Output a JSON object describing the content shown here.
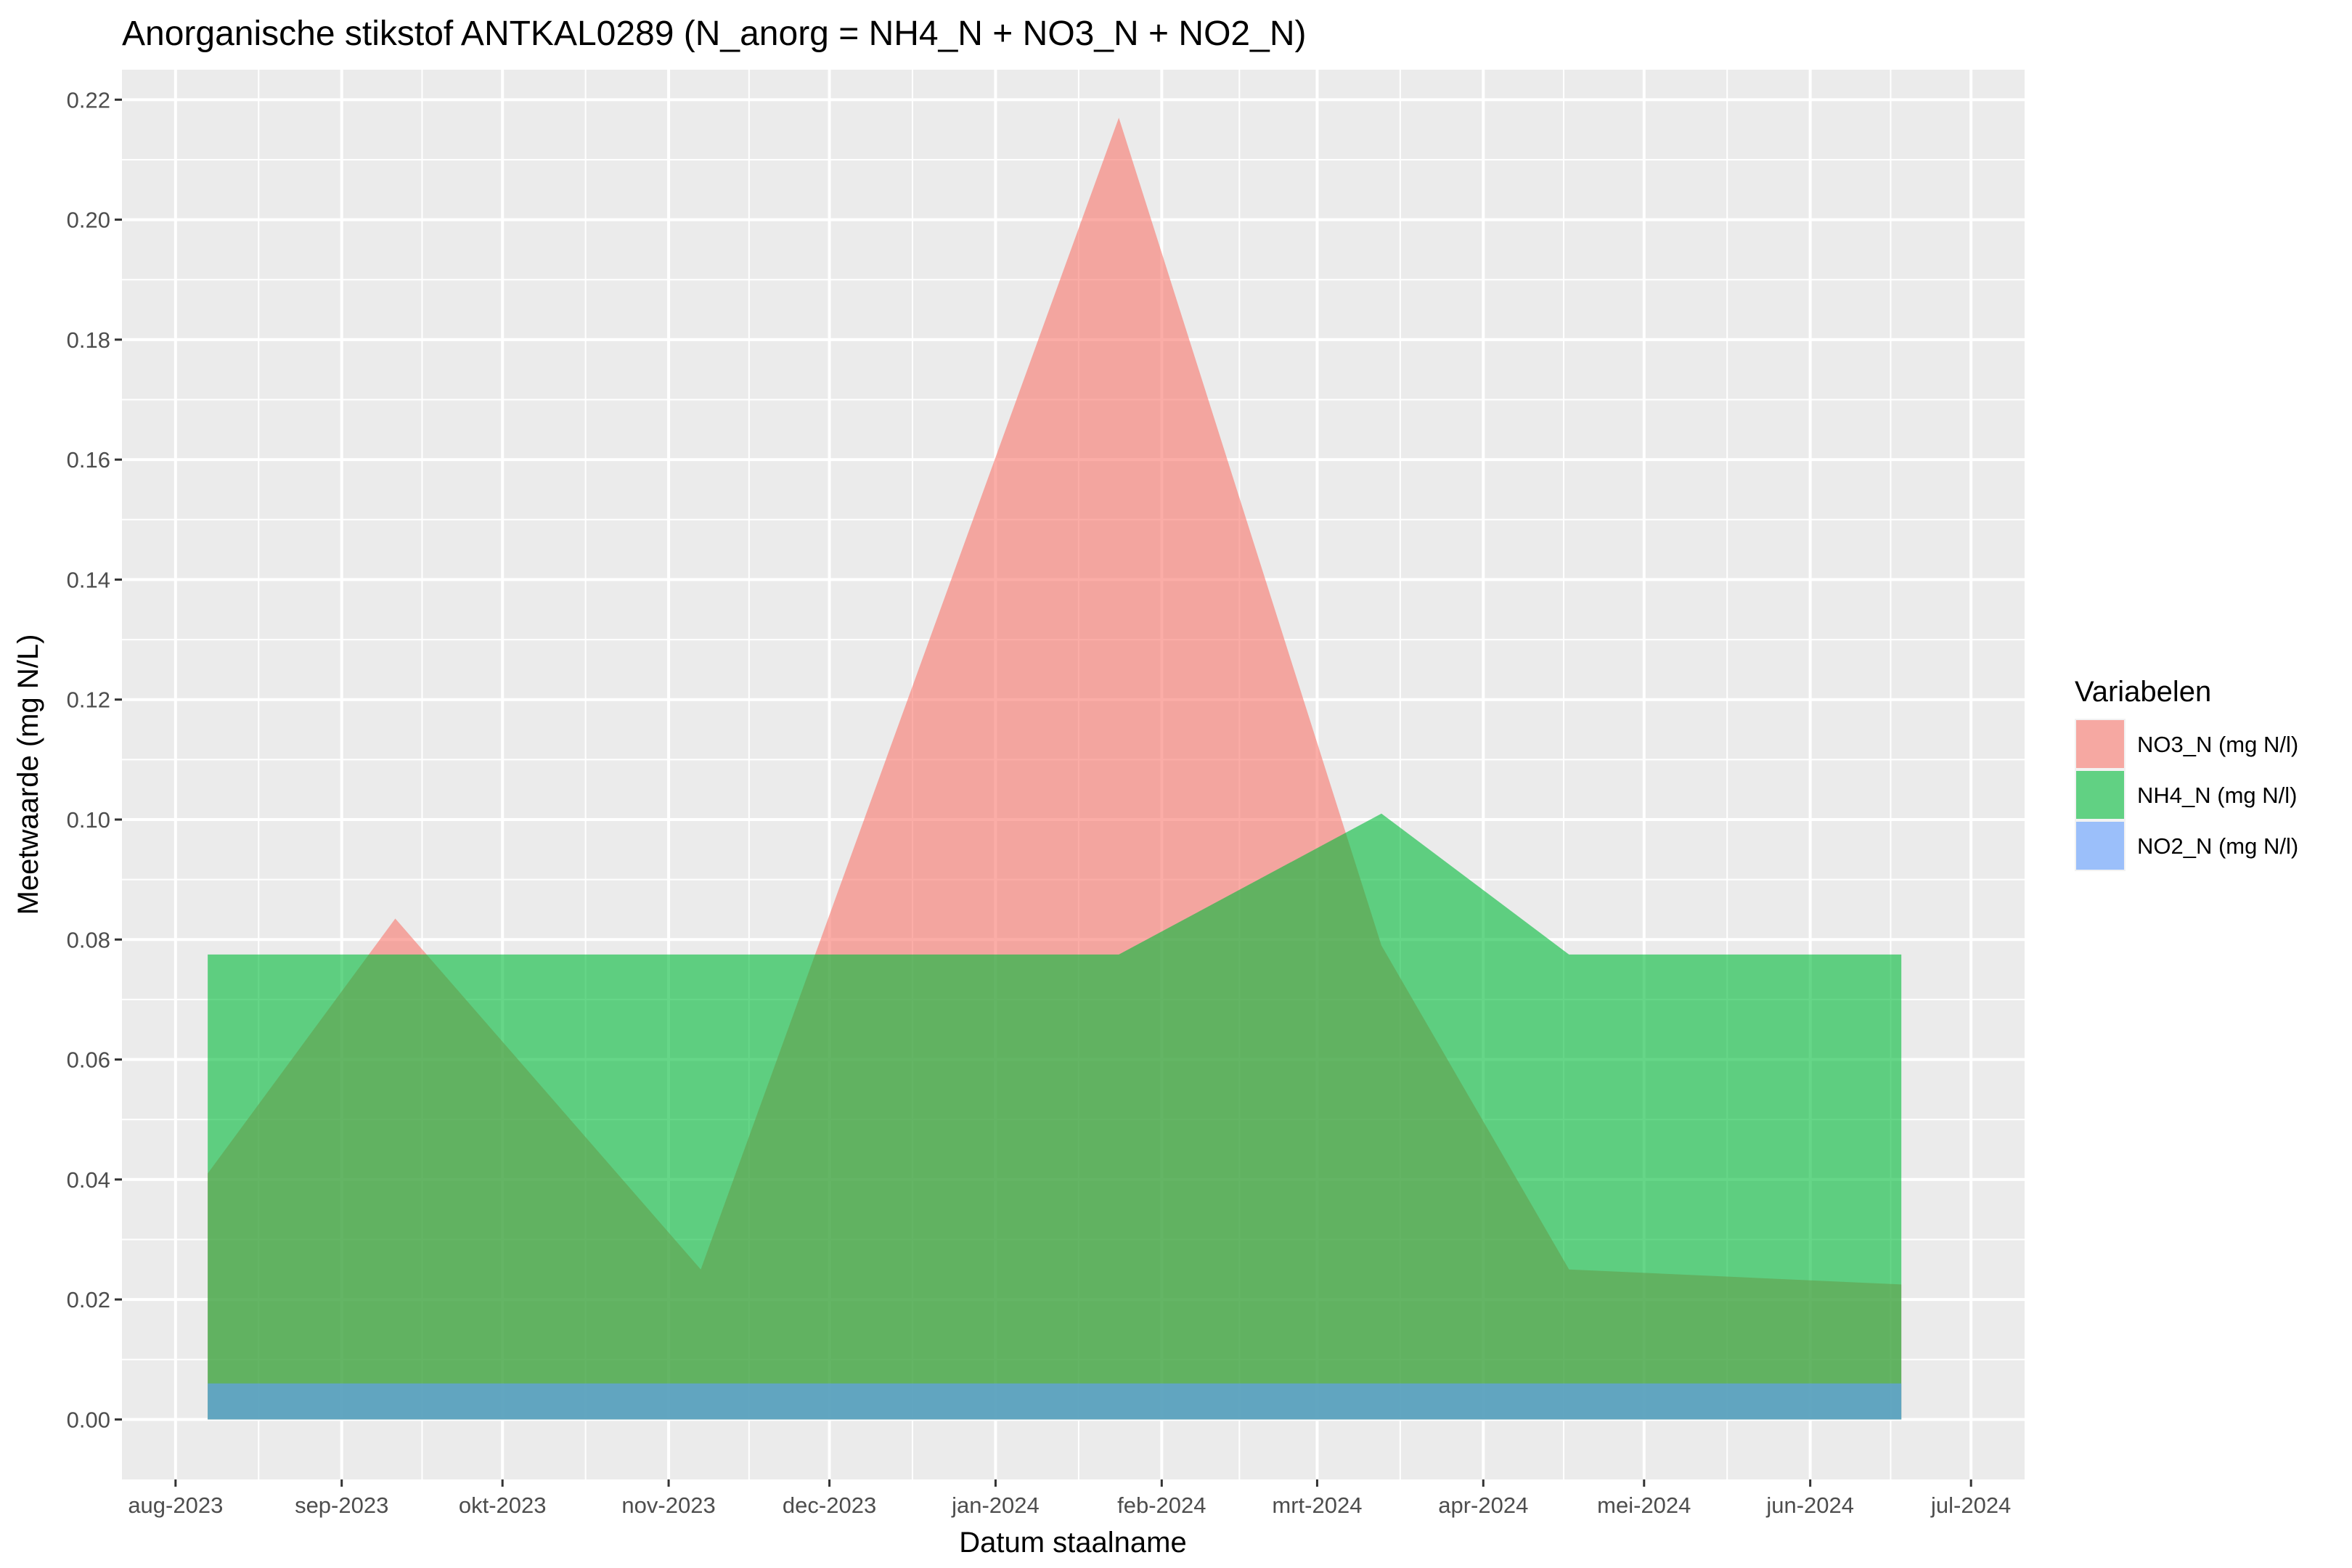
{
  "chart_data": {
    "type": "area",
    "title": "Anorganische stikstof ANTKAL0289 (N_anorg = NH4_N + NO3_N + NO2_N)",
    "xlabel": "Datum staalname",
    "ylabel": "Meetwaarde (mg N/L)",
    "ylim": [
      -0.01,
      0.225
    ],
    "xlim": [
      "2023-07-22",
      "2024-07-11"
    ],
    "y_ticks": [
      "0.00",
      "0.02",
      "0.04",
      "0.06",
      "0.08",
      "0.10",
      "0.12",
      "0.14",
      "0.16",
      "0.18",
      "0.20",
      "0.22"
    ],
    "x_ticks": [
      {
        "date": "2023-08-01",
        "label": "aug-2023"
      },
      {
        "date": "2023-09-01",
        "label": "sep-2023"
      },
      {
        "date": "2023-10-01",
        "label": "okt-2023"
      },
      {
        "date": "2023-11-01",
        "label": "nov-2023"
      },
      {
        "date": "2023-12-01",
        "label": "dec-2023"
      },
      {
        "date": "2024-01-01",
        "label": "jan-2024"
      },
      {
        "date": "2024-02-01",
        "label": "feb-2024"
      },
      {
        "date": "2024-03-01",
        "label": "mrt-2024"
      },
      {
        "date": "2024-04-01",
        "label": "apr-2024"
      },
      {
        "date": "2024-05-01",
        "label": "mei-2024"
      },
      {
        "date": "2024-06-01",
        "label": "jun-2024"
      },
      {
        "date": "2024-07-01",
        "label": "jul-2024"
      }
    ],
    "grid": true,
    "legend": {
      "title": "Variabelen",
      "position": "right"
    },
    "series": [
      {
        "name": "NO3_N (mg N/l)",
        "color": "#F8766D",
        "points": [
          {
            "x": "2023-08-07",
            "y": 0.041
          },
          {
            "x": "2023-09-11",
            "y": 0.0835
          },
          {
            "x": "2023-11-07",
            "y": 0.025
          },
          {
            "x": "2024-01-24",
            "y": 0.217
          },
          {
            "x": "2024-03-13",
            "y": 0.079
          },
          {
            "x": "2024-04-17",
            "y": 0.025
          },
          {
            "x": "2024-06-18",
            "y": 0.0225
          }
        ]
      },
      {
        "name": "NH4_N (mg N/l)",
        "color": "#00BA38",
        "points": [
          {
            "x": "2023-08-07",
            "y": 0.0775
          },
          {
            "x": "2023-09-11",
            "y": 0.0775
          },
          {
            "x": "2023-11-07",
            "y": 0.0775
          },
          {
            "x": "2024-01-24",
            "y": 0.0775
          },
          {
            "x": "2024-03-13",
            "y": 0.101
          },
          {
            "x": "2024-04-17",
            "y": 0.0775
          },
          {
            "x": "2024-06-18",
            "y": 0.0775
          }
        ]
      },
      {
        "name": "NO2_N (mg N/l)",
        "color": "#619CFF",
        "points": [
          {
            "x": "2023-08-07",
            "y": 0.006
          },
          {
            "x": "2023-09-11",
            "y": 0.006
          },
          {
            "x": "2023-11-07",
            "y": 0.006
          },
          {
            "x": "2024-01-24",
            "y": 0.006
          },
          {
            "x": "2024-03-13",
            "y": 0.006
          },
          {
            "x": "2024-04-17",
            "y": 0.006
          },
          {
            "x": "2024-06-18",
            "y": 0.006
          }
        ]
      }
    ]
  },
  "colors": {
    "panel_background": "#EBEBEB",
    "grid_line": "#FFFFFF"
  }
}
